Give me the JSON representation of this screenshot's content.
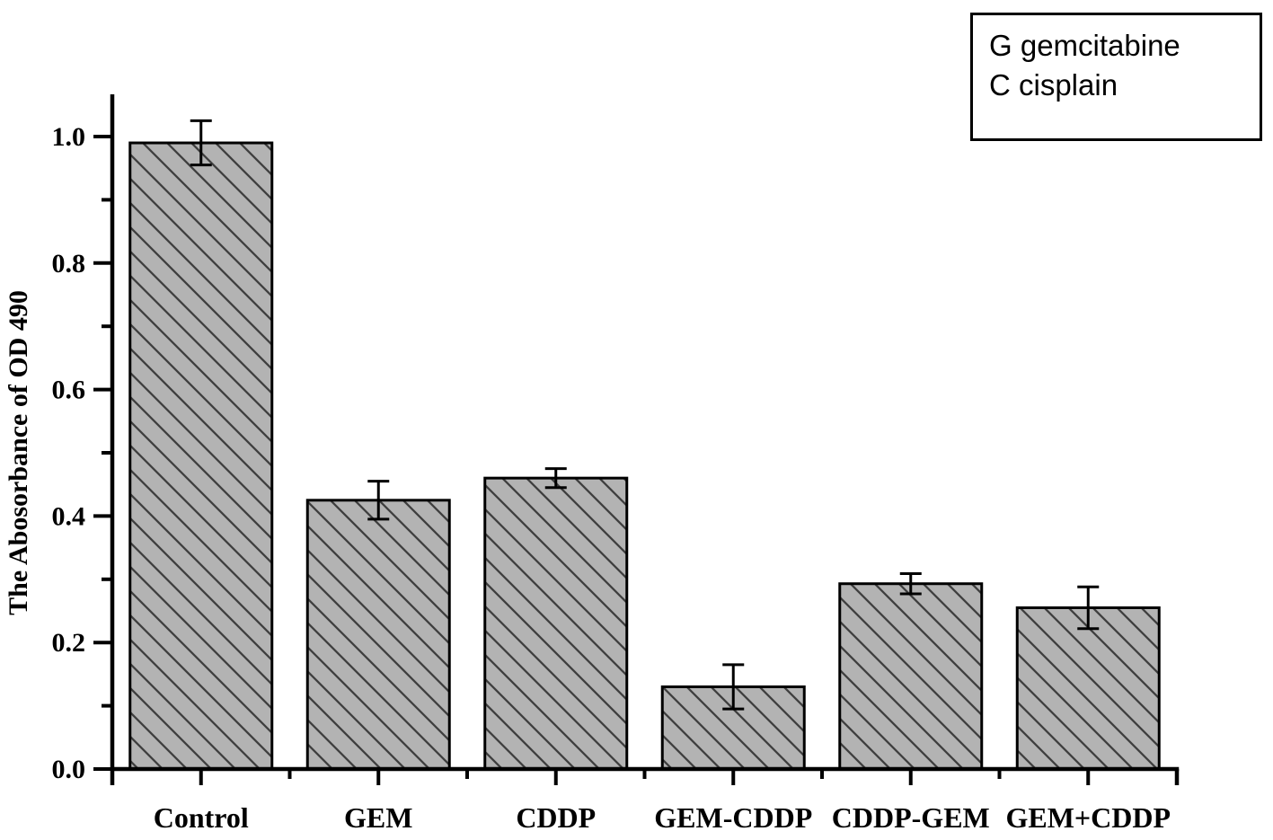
{
  "figure": {
    "background": "#ffffff",
    "axis_color": "#000000"
  },
  "legend": {
    "items": [
      {
        "key": "G",
        "label": "G gemcitabine"
      },
      {
        "key": "C",
        "label": "C cisplain"
      }
    ],
    "position": "top-right"
  },
  "chart_data": {
    "type": "bar",
    "title": "",
    "categories": [
      "Control",
      "GEM",
      "CDDP",
      "GEM-CDDP",
      "CDDP-GEM",
      "GEM+CDDP"
    ],
    "values": [
      0.99,
      0.425,
      0.46,
      0.13,
      0.293,
      0.255
    ],
    "errors": [
      0.035,
      0.03,
      0.015,
      0.035,
      0.016,
      0.033
    ],
    "xlabel": "",
    "ylabel": "The Abosorbance of OD 490",
    "ylim": [
      0,
      1.07
    ],
    "yticks_major": [
      0.0,
      0.2,
      0.4,
      0.6,
      0.8,
      1.0
    ],
    "ytick_labels": [
      "0.0",
      "0.2",
      "0.4",
      "0.6",
      "0.8",
      "1.0"
    ],
    "yticks_minor": [
      0.1,
      0.3,
      0.5,
      0.7,
      0.9
    ],
    "grid": false,
    "error_bars": true,
    "legend_position": "top-right",
    "bar_style": {
      "fill": "#b3b3b3",
      "hatch": "diagonal-down",
      "hatch_color": "#3f3f3f",
      "border_color": "#000000"
    }
  }
}
